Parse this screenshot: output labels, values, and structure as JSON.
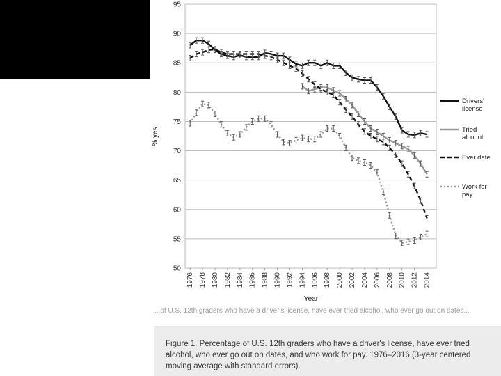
{
  "chart_data": {
    "type": "line",
    "xlabel": "Year",
    "ylabel": "% yes",
    "ylim": [
      50,
      95
    ],
    "yticks": [
      "50",
      "55",
      "60",
      "65",
      "70",
      "75",
      "80",
      "85",
      "90",
      "95"
    ],
    "xticks": [
      "1976",
      "1978",
      "1980",
      "1982",
      "1984",
      "1986",
      "1988",
      "1990",
      "1992",
      "1994",
      "1996",
      "1998",
      "2000",
      "2002",
      "2004",
      "2006",
      "2008",
      "2010",
      "2012",
      "2014"
    ],
    "grid": "horizontal",
    "legend_position": "right",
    "series": [
      {
        "name": "Drivers' license",
        "color": "#111111",
        "dash": "solid",
        "x": [
          1976,
          1977,
          1978,
          1979,
          1980,
          1981,
          1982,
          1983,
          1984,
          1985,
          1986,
          1987,
          1988,
          1989,
          1990,
          1991,
          1992,
          1993,
          1994,
          1995,
          1996,
          1997,
          1998,
          1999,
          2000,
          2001,
          2002,
          2003,
          2004,
          2005,
          2006,
          2007,
          2008,
          2009,
          2010,
          2011,
          2012,
          2013,
          2014
        ],
        "y": [
          88.0,
          88.8,
          88.8,
          88.2,
          87.2,
          86.5,
          86.2,
          86.0,
          86.3,
          86.0,
          86.0,
          86.0,
          86.7,
          86.5,
          86.2,
          86.2,
          85.5,
          84.8,
          84.5,
          85.0,
          85.0,
          84.5,
          85.0,
          84.5,
          84.5,
          83.3,
          82.5,
          82.2,
          82.0,
          82.0,
          80.8,
          79.3,
          77.5,
          75.8,
          73.5,
          72.8,
          72.7,
          73.0,
          72.8
        ]
      },
      {
        "name": "Tried alcohol",
        "color": "#999999",
        "dash": "solid",
        "x": [
          1994,
          1995,
          1996,
          1997,
          1998,
          1999,
          2000,
          2001,
          2002,
          2003,
          2004,
          2005,
          2006,
          2007,
          2008,
          2009,
          2010,
          2011,
          2012,
          2013,
          2014
        ],
        "y": [
          81.0,
          80.2,
          80.5,
          80.8,
          80.8,
          80.3,
          79.8,
          78.8,
          77.8,
          76.3,
          75.0,
          73.8,
          73.2,
          72.5,
          71.8,
          71.3,
          70.8,
          70.3,
          69.2,
          67.8,
          66.0
        ]
      },
      {
        "name": "Ever date",
        "color": "#111111",
        "dash": "dashed",
        "x": [
          1976,
          1977,
          1978,
          1979,
          1980,
          1981,
          1982,
          1983,
          1984,
          1985,
          1986,
          1987,
          1988,
          1989,
          1990,
          1991,
          1992,
          1993,
          1994,
          1995,
          1996,
          1997,
          1998,
          1999,
          2000,
          2001,
          2002,
          2003,
          2004,
          2005,
          2006,
          2007,
          2008,
          2009,
          2010,
          2011,
          2012,
          2013,
          2014
        ],
        "y": [
          85.8,
          86.5,
          86.8,
          87.2,
          87.3,
          86.8,
          86.5,
          86.5,
          86.5,
          86.5,
          86.5,
          86.5,
          86.2,
          86.0,
          85.5,
          85.0,
          84.5,
          84.0,
          83.2,
          82.2,
          81.3,
          80.5,
          80.0,
          79.5,
          78.3,
          77.0,
          75.8,
          74.5,
          73.3,
          72.5,
          72.0,
          71.5,
          70.5,
          69.3,
          67.8,
          66.0,
          64.0,
          61.5,
          58.5
        ]
      },
      {
        "name": "Work for pay",
        "color": "#999999",
        "dash": "dotted",
        "x": [
          1976,
          1977,
          1978,
          1979,
          1980,
          1981,
          1982,
          1983,
          1984,
          1985,
          1986,
          1987,
          1988,
          1989,
          1990,
          1991,
          1992,
          1993,
          1994,
          1995,
          1996,
          1997,
          1998,
          1999,
          2000,
          2001,
          2002,
          2003,
          2004,
          2005,
          2006,
          2007,
          2008,
          2009,
          2010,
          2011,
          2012,
          2013,
          2014
        ],
        "y": [
          74.7,
          76.5,
          78.0,
          77.8,
          76.3,
          74.5,
          73.0,
          72.3,
          72.8,
          74.0,
          75.0,
          75.5,
          75.5,
          74.5,
          72.8,
          71.5,
          71.3,
          71.8,
          72.2,
          72.0,
          72.0,
          72.8,
          73.8,
          73.8,
          72.5,
          70.5,
          68.8,
          68.3,
          68.0,
          67.5,
          66.3,
          63.0,
          59.0,
          55.5,
          54.3,
          54.5,
          54.7,
          55.3,
          55.8
        ]
      }
    ]
  },
  "legend": {
    "drivers_license": [
      "Drivers'",
      "license"
    ],
    "tried_alcohol": [
      "Tried",
      "alcohol"
    ],
    "ever_date": [
      "Ever date"
    ],
    "work_for_pay": [
      "Work for",
      "pay"
    ]
  },
  "cut_text": "...of U.S. 12th graders who have a driver's license, have ever tried alcohol, who ever go out on dates...",
  "caption": "Figure 1. Percentage of U.S. 12th graders who have a driver's license, have ever tried alcohol, who ever go out on dates, and who work for pay. 1976–2016 (3-year centered moving average with standard errors)."
}
